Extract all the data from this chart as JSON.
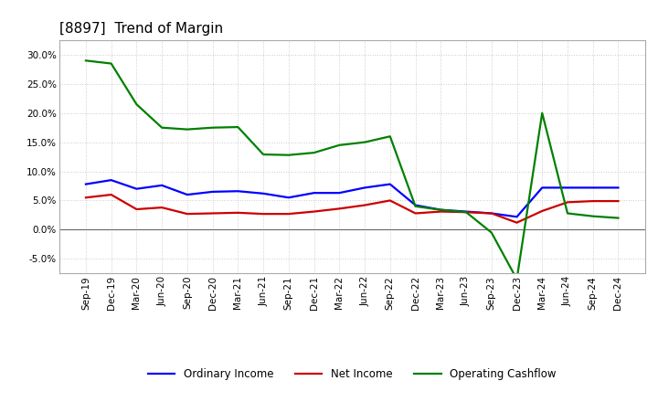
{
  "title": "[8897]  Trend of Margin",
  "x_labels": [
    "Sep-19",
    "Dec-19",
    "Mar-20",
    "Jun-20",
    "Sep-20",
    "Dec-20",
    "Mar-21",
    "Jun-21",
    "Sep-21",
    "Dec-21",
    "Mar-22",
    "Jun-22",
    "Sep-22",
    "Dec-22",
    "Mar-23",
    "Jun-23",
    "Sep-23",
    "Dec-23",
    "Mar-24",
    "Jun-24",
    "Sep-24",
    "Dec-24"
  ],
  "ordinary_income": [
    7.8,
    8.5,
    7.0,
    7.6,
    6.0,
    6.5,
    6.6,
    6.2,
    5.5,
    6.3,
    6.3,
    7.2,
    7.8,
    4.2,
    3.4,
    3.1,
    2.8,
    2.2,
    7.2,
    7.2,
    7.2,
    7.2
  ],
  "net_income": [
    5.5,
    6.0,
    3.5,
    3.8,
    2.7,
    2.8,
    2.9,
    2.7,
    2.7,
    3.1,
    3.6,
    4.2,
    5.0,
    2.8,
    3.1,
    3.0,
    2.8,
    1.2,
    3.2,
    4.7,
    4.9,
    4.9
  ],
  "operating_cashflow": [
    29.0,
    28.5,
    21.5,
    17.5,
    17.2,
    17.5,
    17.6,
    12.9,
    12.8,
    13.2,
    14.5,
    15.0,
    16.0,
    4.0,
    3.4,
    3.0,
    -0.5,
    -8.5,
    20.0,
    2.8,
    2.3,
    2.0
  ],
  "ylim": [
    -7.5,
    32.5
  ],
  "yticks": [
    -5.0,
    0.0,
    5.0,
    10.0,
    15.0,
    20.0,
    25.0,
    30.0
  ],
  "line_color_ordinary": "#0000FF",
  "line_color_net": "#CC0000",
  "line_color_ocf": "#008000",
  "bg_color": "#FFFFFF",
  "grid_color": "#BBBBBB",
  "title_fontsize": 11,
  "tick_fontsize": 7.5
}
